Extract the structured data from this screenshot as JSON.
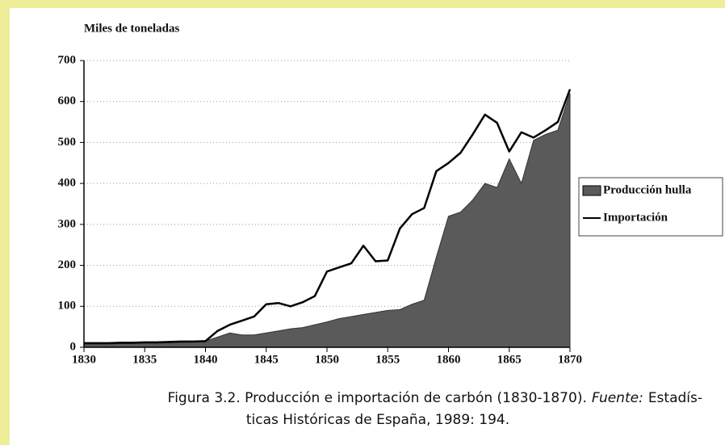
{
  "chart_data": {
    "type": "area-line",
    "y_label": "Miles de toneladas",
    "x": [
      1830,
      1831,
      1832,
      1833,
      1834,
      1835,
      1836,
      1837,
      1838,
      1839,
      1840,
      1841,
      1842,
      1843,
      1844,
      1845,
      1846,
      1847,
      1848,
      1849,
      1850,
      1851,
      1852,
      1853,
      1854,
      1855,
      1856,
      1857,
      1858,
      1859,
      1860,
      1861,
      1862,
      1863,
      1864,
      1865,
      1866,
      1867,
      1868,
      1869,
      1870
    ],
    "series": [
      {
        "name": "Producción hulla",
        "kind": "area",
        "color": "#5a5a5a",
        "values": [
          8,
          8,
          8,
          9,
          9,
          10,
          10,
          11,
          12,
          13,
          15,
          25,
          35,
          30,
          30,
          35,
          40,
          45,
          48,
          55,
          62,
          70,
          75,
          80,
          85,
          90,
          92,
          105,
          115,
          220,
          320,
          330,
          360,
          400,
          390,
          460,
          400,
          505,
          520,
          530,
          620
        ]
      },
      {
        "name": "Importación",
        "kind": "line",
        "color": "#000000",
        "values": [
          10,
          10,
          10,
          11,
          11,
          12,
          12,
          13,
          14,
          14,
          15,
          40,
          55,
          65,
          75,
          105,
          108,
          100,
          110,
          125,
          185,
          195,
          205,
          248,
          210,
          212,
          290,
          325,
          340,
          430,
          450,
          475,
          520,
          568,
          548,
          478,
          525,
          512,
          530,
          550,
          630
        ]
      }
    ],
    "xlim": [
      1830,
      1870
    ],
    "xticks": [
      1830,
      1835,
      1840,
      1845,
      1850,
      1855,
      1860,
      1865,
      1870
    ],
    "ylim": [
      0,
      700
    ],
    "yticks": [
      0,
      100,
      200,
      300,
      400,
      500,
      600,
      700
    ],
    "grid": true,
    "legend": "right",
    "caption": {
      "text": "Figura 3.2.  Producción e importación de carbón (1830-1870).",
      "source_label": "Fuente:",
      "source": [
        "Estadís-",
        "ticas Históricas de España, 1989: 194."
      ]
    }
  }
}
